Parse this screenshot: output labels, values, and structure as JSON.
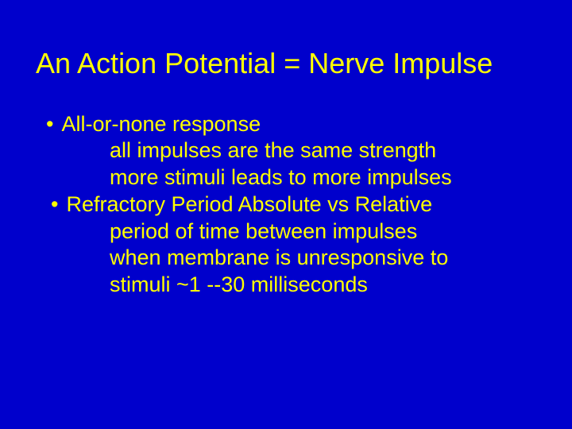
{
  "slide": {
    "background_color": "#0000cc",
    "text_color": "#ffff00",
    "title_fontsize": 36,
    "body_fontsize": 27,
    "font_family": "Arial",
    "title": "An Action Potential = Nerve Impulse",
    "bullets": [
      {
        "text": "All-or-none response",
        "sub": [
          "all impulses are the same strength",
          "more stimuli leads to more impulses"
        ]
      },
      {
        "text": " Refractory Period  Absolute vs Relative",
        "sub": [
          "period of time between impulses",
          "when membrane is unresponsive to",
          "stimuli ~1 --30 milliseconds"
        ]
      }
    ]
  }
}
